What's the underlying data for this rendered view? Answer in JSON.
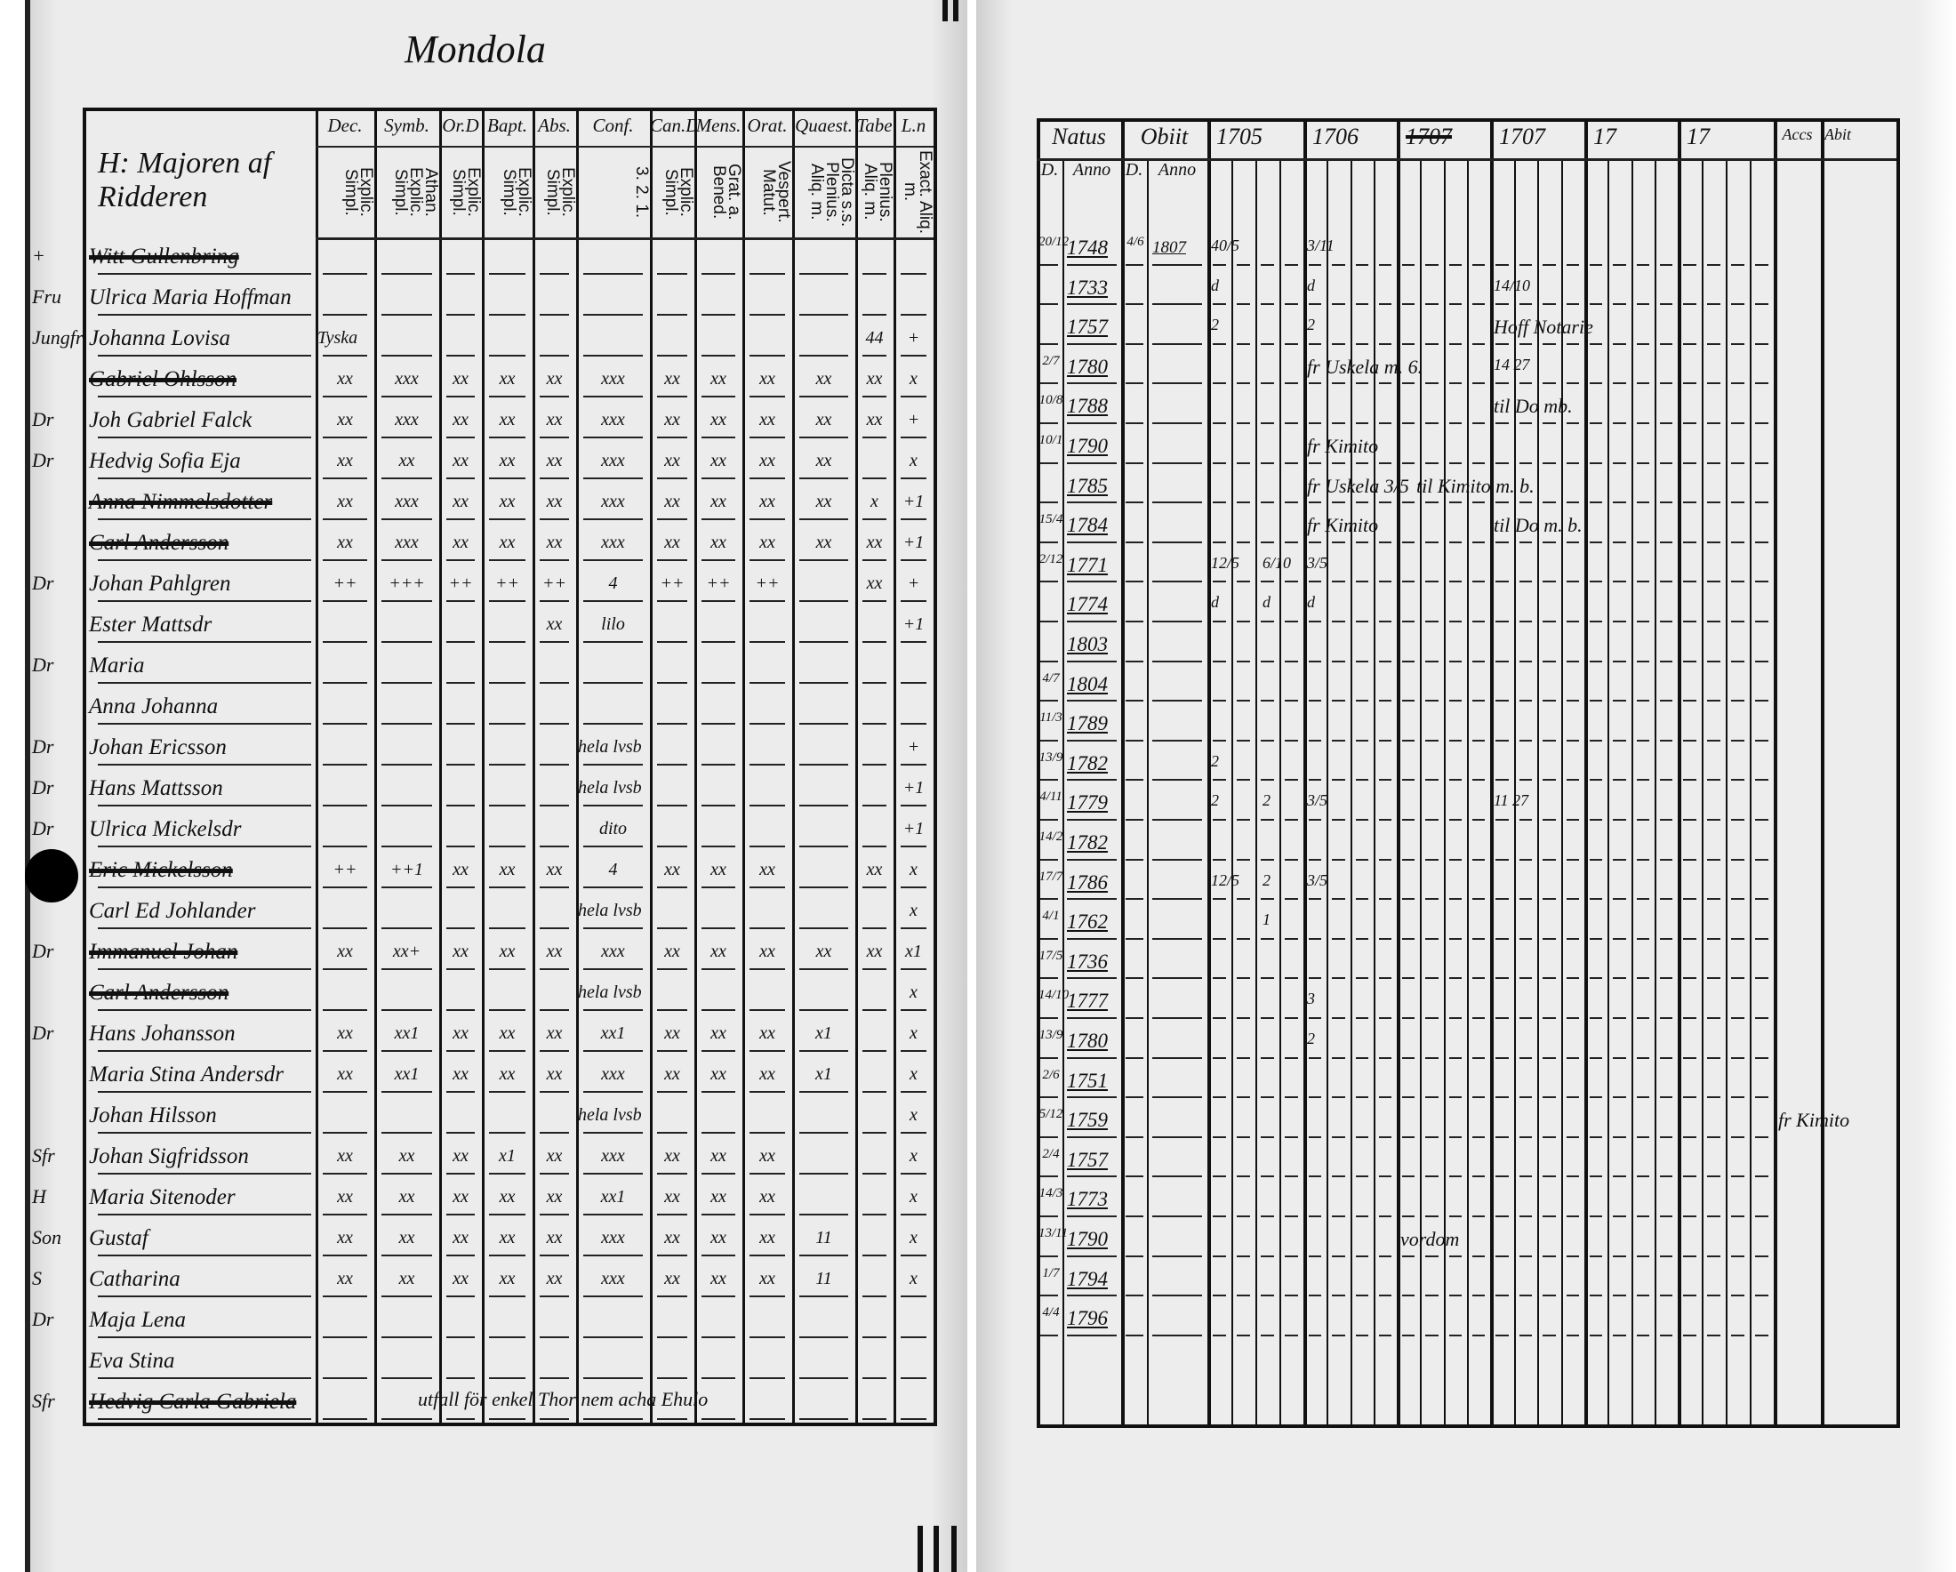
{
  "left_page": {
    "heading": "Mondola",
    "name_header": "H: Majoren af Ridderen",
    "columns": [
      {
        "label": "Dec.",
        "sub": "Explic. Simpl."
      },
      {
        "label": "Symb.",
        "sub": "Athan. Explic. Simpl."
      },
      {
        "label": "Or.D",
        "sub": "Explic. Simpl."
      },
      {
        "label": "Bapt.",
        "sub": "Explic. Simpl."
      },
      {
        "label": "Abs.",
        "sub": "Explic. Simpl."
      },
      {
        "label": "Conf.",
        "sub": "3. 2. 1."
      },
      {
        "label": "Can.D",
        "sub": "Explic. Simpl."
      },
      {
        "label": "Mens.",
        "sub": "Grat. a. Bened."
      },
      {
        "label": "Orat.",
        "sub": "Vespert. Matut."
      },
      {
        "label": "Quaest.",
        "sub": "Dicta s.s. Plenius. Aliq. m."
      },
      {
        "label": "Tabe",
        "sub": "Plenius. Aliq. m."
      },
      {
        "label": "L.n",
        "sub": "Exact. Aliq. m."
      }
    ],
    "rows": [
      {
        "prefix": "+",
        "name": "Witt Gullenbring",
        "struck": true,
        "marks": []
      },
      {
        "prefix": "Fru",
        "name": "Ulrica Maria Hoffman",
        "marks": []
      },
      {
        "prefix": "Jungfr",
        "name": "Johanna Lovisa",
        "marks": [
          "Tyska",
          "",
          "",
          "",
          "",
          "",
          "",
          "",
          "",
          "",
          "44",
          "+"
        ]
      },
      {
        "prefix": "",
        "name": "Gabriel Ohlsson",
        "struck": true,
        "marks": [
          "xx",
          "xxx",
          "xx",
          "xx",
          "xx",
          "xxx",
          "xx",
          "xx",
          "xx",
          "xx",
          "xx",
          "x"
        ]
      },
      {
        "prefix": "Dr",
        "name": "Joh Gabriel Falck",
        "marks": [
          "xx",
          "xxx",
          "xx",
          "xx",
          "xx",
          "xxx",
          "xx",
          "xx",
          "xx",
          "xx",
          "xx",
          "+"
        ]
      },
      {
        "prefix": "Dr",
        "name": "Hedvig Sofia Eja",
        "marks": [
          "xx",
          "xx",
          "xx",
          "xx",
          "xx",
          "xxx",
          "xx",
          "xx",
          "xx",
          "xx",
          "",
          "x"
        ]
      },
      {
        "prefix": "",
        "name": "Anna Nimmelsdotter",
        "struck": true,
        "marks": [
          "xx",
          "xxx",
          "xx",
          "xx",
          "xx",
          "xxx",
          "xx",
          "xx",
          "xx",
          "xx",
          "x",
          "+1"
        ]
      },
      {
        "prefix": "",
        "name": "Carl Andersson",
        "struck": true,
        "marks": [
          "xx",
          "xxx",
          "xx",
          "xx",
          "xx",
          "xxx",
          "xx",
          "xx",
          "xx",
          "xx",
          "xx",
          "+1"
        ]
      },
      {
        "prefix": "Dr",
        "name": "Johan Pahlgren",
        "marks": [
          "++",
          "+++",
          "++",
          "++",
          "++",
          "4",
          "++",
          "++",
          "++",
          "",
          "xx",
          "+"
        ]
      },
      {
        "prefix": "",
        "name": "Ester Mattsdr",
        "marks": [
          "",
          "",
          "",
          "",
          "xx",
          "lilo",
          "",
          "",
          "",
          "",
          "",
          "+1"
        ]
      },
      {
        "prefix": "Dr",
        "name": "Maria",
        "marks": []
      },
      {
        "prefix": "",
        "name": "Anna Johanna",
        "marks": []
      },
      {
        "prefix": "Dr",
        "name": "Johan Ericsson",
        "marks": [
          "",
          "",
          "",
          "",
          "",
          "hela lvsb",
          "",
          "",
          "",
          "",
          "",
          "+"
        ]
      },
      {
        "prefix": "Dr",
        "name": "Hans Mattsson",
        "marks": [
          "",
          "",
          "",
          "",
          "",
          "hela lvsb",
          "",
          "",
          "",
          "",
          "",
          "+1"
        ]
      },
      {
        "prefix": "Dr",
        "name": "Ulrica Mickelsdr",
        "marks": [
          "",
          "",
          "",
          "",
          "",
          "dito",
          "",
          "",
          "",
          "",
          "",
          "+1"
        ]
      },
      {
        "prefix": "",
        "name": "Eric Mickelsson",
        "struck": true,
        "marks": [
          "++",
          "++1",
          "xx",
          "xx",
          "xx",
          "4",
          "xx",
          "xx",
          "xx",
          "",
          "xx",
          "x"
        ]
      },
      {
        "prefix": "",
        "name": "Carl Ed Johlander",
        "marks": [
          "",
          "",
          "",
          "",
          "",
          "hela lvsb",
          "",
          "",
          "",
          "",
          "",
          "x"
        ]
      },
      {
        "prefix": "Dr",
        "name": "Immanuel Johan",
        "struck": true,
        "marks": [
          "xx",
          "xx+",
          "xx",
          "xx",
          "xx",
          "xxx",
          "xx",
          "xx",
          "xx",
          "xx",
          "xx",
          "x1"
        ]
      },
      {
        "prefix": "",
        "name": "Carl Andersson",
        "struck": true,
        "marks": [
          "",
          "",
          "",
          "",
          "",
          "hela lvsb",
          "",
          "",
          "",
          "",
          "",
          "x"
        ]
      },
      {
        "prefix": "Dr",
        "name": "Hans Johansson",
        "marks": [
          "xx",
          "xx1",
          "xx",
          "xx",
          "xx",
          "xx1",
          "xx",
          "xx",
          "xx",
          "x1",
          "",
          "x"
        ]
      },
      {
        "prefix": "",
        "name": "Maria Stina Andersdr",
        "marks": [
          "xx",
          "xx1",
          "xx",
          "xx",
          "xx",
          "xxx",
          "xx",
          "xx",
          "xx",
          "x1",
          "",
          "x"
        ]
      },
      {
        "prefix": "",
        "name": "Johan Hilsson",
        "marks": [
          "",
          "",
          "",
          "",
          "",
          "hela lvsb",
          "",
          "",
          "",
          "",
          "",
          "x"
        ]
      },
      {
        "prefix": "Sfr",
        "name": "Johan Sigfridsson",
        "marks": [
          "xx",
          "xx",
          "xx",
          "x1",
          "xx",
          "xxx",
          "xx",
          "xx",
          "xx",
          "",
          "",
          "x"
        ]
      },
      {
        "prefix": "H",
        "name": "Maria Sitenoder",
        "marks": [
          "xx",
          "xx",
          "xx",
          "xx",
          "xx",
          "xx1",
          "xx",
          "xx",
          "xx",
          "",
          "",
          "x"
        ]
      },
      {
        "prefix": "Son",
        "name": "Gustaf",
        "marks": [
          "xx",
          "xx",
          "xx",
          "xx",
          "xx",
          "xxx",
          "xx",
          "xx",
          "xx",
          "11",
          "",
          "x"
        ]
      },
      {
        "prefix": "S",
        "name": "Catharina",
        "marks": [
          "xx",
          "xx",
          "xx",
          "xx",
          "xx",
          "xxx",
          "xx",
          "xx",
          "xx",
          "11",
          "",
          "x"
        ]
      },
      {
        "prefix": "Dr",
        "name": "Maja Lena",
        "marks": []
      },
      {
        "prefix": "",
        "name": "Eva Stina",
        "marks": []
      },
      {
        "prefix": "Sfr",
        "name": "Hedvig Carla Gabriela",
        "struck": true,
        "marks": []
      }
    ],
    "footer_note": "utfall för enkel Thor nem acha Ehulo"
  },
  "right_page": {
    "headers": {
      "natus": "Natus",
      "obiit": "Obiit",
      "years": [
        "1705",
        "1706",
        "1707",
        "1707",
        "17",
        "17"
      ],
      "struck_year_index": 2,
      "accs": "Accs",
      "abit": "Abit",
      "d": "D.",
      "anno": "Anno"
    },
    "rows": [
      {
        "day": "20/12",
        "year": "1748",
        "obiit_day": "4/6",
        "obiit_year": "1807"
      },
      {
        "day": "",
        "year": "1733"
      },
      {
        "day": "",
        "year": "1757"
      },
      {
        "day": "2/7",
        "year": "1780"
      },
      {
        "day": "10/8",
        "year": "1788"
      },
      {
        "day": "10/1",
        "year": "1790"
      },
      {
        "day": "",
        "year": "1785"
      },
      {
        "day": "15/4",
        "year": "1784"
      },
      {
        "day": "2/12",
        "year": "1771"
      },
      {
        "day": "",
        "year": "1774"
      },
      {
        "day": "",
        "year": "1803"
      },
      {
        "day": "4/7",
        "year": "1804"
      },
      {
        "day": "11/3",
        "year": "1789"
      },
      {
        "day": "13/9",
        "year": "1782"
      },
      {
        "day": "4/11",
        "year": "1779"
      },
      {
        "day": "14/2",
        "year": "1782"
      },
      {
        "day": "17/7",
        "year": "1786"
      },
      {
        "day": "4/1",
        "year": "1762"
      },
      {
        "day": "17/5",
        "year": "1736"
      },
      {
        "day": "14/10",
        "year": "1777"
      },
      {
        "day": "13/9",
        "year": "1780"
      },
      {
        "day": "2/6",
        "year": "1751"
      },
      {
        "day": "5/12",
        "year": "1759"
      },
      {
        "day": "2/4",
        "year": "1757"
      },
      {
        "day": "14/3",
        "year": "1773"
      },
      {
        "day": "13/11",
        "year": "1790"
      },
      {
        "day": "1/7",
        "year": "1794"
      },
      {
        "day": "4/4",
        "year": "1796"
      }
    ],
    "annotations": [
      {
        "row": 0,
        "col": "y0",
        "text": "40/5"
      },
      {
        "row": 0,
        "col": "y1",
        "text": "3/11"
      },
      {
        "row": 1,
        "col": "y0",
        "text": "d"
      },
      {
        "row": 1,
        "col": "y1",
        "text": "d"
      },
      {
        "row": 1,
        "col": "y3",
        "text": "14/10"
      },
      {
        "row": 2,
        "col": "y0",
        "text": "2"
      },
      {
        "row": 2,
        "col": "y1",
        "text": "2"
      },
      {
        "row": 2,
        "col": "y3",
        "text": "Hoff Notarie"
      },
      {
        "row": 3,
        "col": "y1",
        "text": "fr Uskela m. 6."
      },
      {
        "row": 3,
        "col": "y3",
        "text": "14 27"
      },
      {
        "row": 4,
        "col": "y3",
        "text": "til Do mb."
      },
      {
        "row": 5,
        "col": "y1",
        "text": "fr Kimito"
      },
      {
        "row": 6,
        "col": "y1",
        "text": "fr Uskela 3/5"
      },
      {
        "row": 6,
        "col": "y2",
        "text": "til Kimito m. b."
      },
      {
        "row": 7,
        "col": "y1",
        "text": "fr Kimito"
      },
      {
        "row": 7,
        "col": "y3",
        "text": "til Do m. b."
      },
      {
        "row": 8,
        "col": "y0",
        "text": "12/5"
      },
      {
        "row": 8,
        "col": "y0b",
        "text": "6/10"
      },
      {
        "row": 8,
        "col": "y1",
        "text": "3/5"
      },
      {
        "row": 9,
        "col": "y0",
        "text": "d"
      },
      {
        "row": 9,
        "col": "y0b",
        "text": "d"
      },
      {
        "row": 9,
        "col": "y1",
        "text": "d"
      },
      {
        "row": 13,
        "col": "y0",
        "text": "2"
      },
      {
        "row": 14,
        "col": "y0",
        "text": "2"
      },
      {
        "row": 14,
        "col": "y0b",
        "text": "2"
      },
      {
        "row": 14,
        "col": "y1",
        "text": "3/5"
      },
      {
        "row": 14,
        "col": "y3",
        "text": "11 27"
      },
      {
        "row": 16,
        "col": "y0",
        "text": "12/5"
      },
      {
        "row": 16,
        "col": "y0b",
        "text": "2"
      },
      {
        "row": 16,
        "col": "y1",
        "text": "3/5"
      },
      {
        "row": 17,
        "col": "y0b",
        "text": "1"
      },
      {
        "row": 19,
        "col": "y1",
        "text": "3"
      },
      {
        "row": 20,
        "col": "y1",
        "text": "2"
      },
      {
        "row": 22,
        "col": "accs",
        "text": "fr Kimito"
      },
      {
        "row": 25,
        "col": "y2",
        "text": "vordom"
      }
    ]
  }
}
